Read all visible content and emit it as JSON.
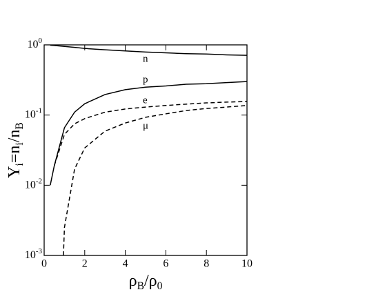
{
  "chart_data": {
    "type": "line",
    "xlabel": [
      {
        "text": "ρ"
      },
      {
        "text": "B",
        "sub": true
      },
      {
        "text": "/ρ"
      },
      {
        "text": "0",
        "sub": true
      }
    ],
    "ylabel": [
      {
        "text": "Y"
      },
      {
        "text": "i",
        "sub": true
      },
      {
        "text": "=n"
      },
      {
        "text": "i",
        "sub": true
      },
      {
        "text": "/n"
      },
      {
        "text": "B",
        "sub": true
      }
    ],
    "log_y": true,
    "xlim": [
      0,
      10
    ],
    "ylim": [
      0.001,
      1
    ],
    "xticks": [
      0,
      2,
      4,
      6,
      8,
      10
    ],
    "yticks": [
      {
        "value": 0.001,
        "label": "10",
        "exponent": "-3"
      },
      {
        "value": 0.01,
        "label": "10",
        "exponent": "-2"
      },
      {
        "value": 0.1,
        "label": "10",
        "exponent": "-1"
      },
      {
        "value": 1,
        "label": "10",
        "exponent": "0"
      }
    ],
    "series": [
      {
        "name": "n",
        "color": "#000000",
        "dash": false,
        "x": [
          0.3,
          0.5,
          1,
          1.5,
          2,
          3,
          4,
          5,
          6,
          7,
          8,
          9,
          10
        ],
        "values": [
          0.99,
          0.98,
          0.95,
          0.92,
          0.89,
          0.85,
          0.82,
          0.79,
          0.77,
          0.75,
          0.74,
          0.72,
          0.71
        ]
      },
      {
        "name": "p",
        "color": "#000000",
        "dash": false,
        "x": [
          0.3,
          0.5,
          1,
          1.5,
          2,
          3,
          4,
          5,
          6,
          7,
          8,
          9,
          10
        ],
        "values": [
          0.01,
          0.019,
          0.066,
          0.11,
          0.145,
          0.196,
          0.23,
          0.25,
          0.26,
          0.275,
          0.28,
          0.29,
          0.3
        ]
      },
      {
        "name": "e",
        "color": "#000000",
        "dash": true,
        "x": [
          0.5,
          1,
          1.5,
          2,
          3,
          4,
          5,
          6,
          7,
          8,
          9,
          10
        ],
        "values": [
          0.019,
          0.053,
          0.075,
          0.089,
          0.11,
          0.122,
          0.13,
          0.137,
          0.143,
          0.149,
          0.153,
          0.156
        ]
      },
      {
        "name": "μ",
        "color": "#000000",
        "dash": true,
        "x": [
          0.95,
          1,
          1.5,
          2,
          3,
          4,
          5,
          6,
          7,
          8,
          9,
          10
        ],
        "values": [
          0.001,
          0.0025,
          0.017,
          0.034,
          0.059,
          0.077,
          0.093,
          0.104,
          0.116,
          0.124,
          0.13,
          0.137
        ]
      }
    ]
  }
}
